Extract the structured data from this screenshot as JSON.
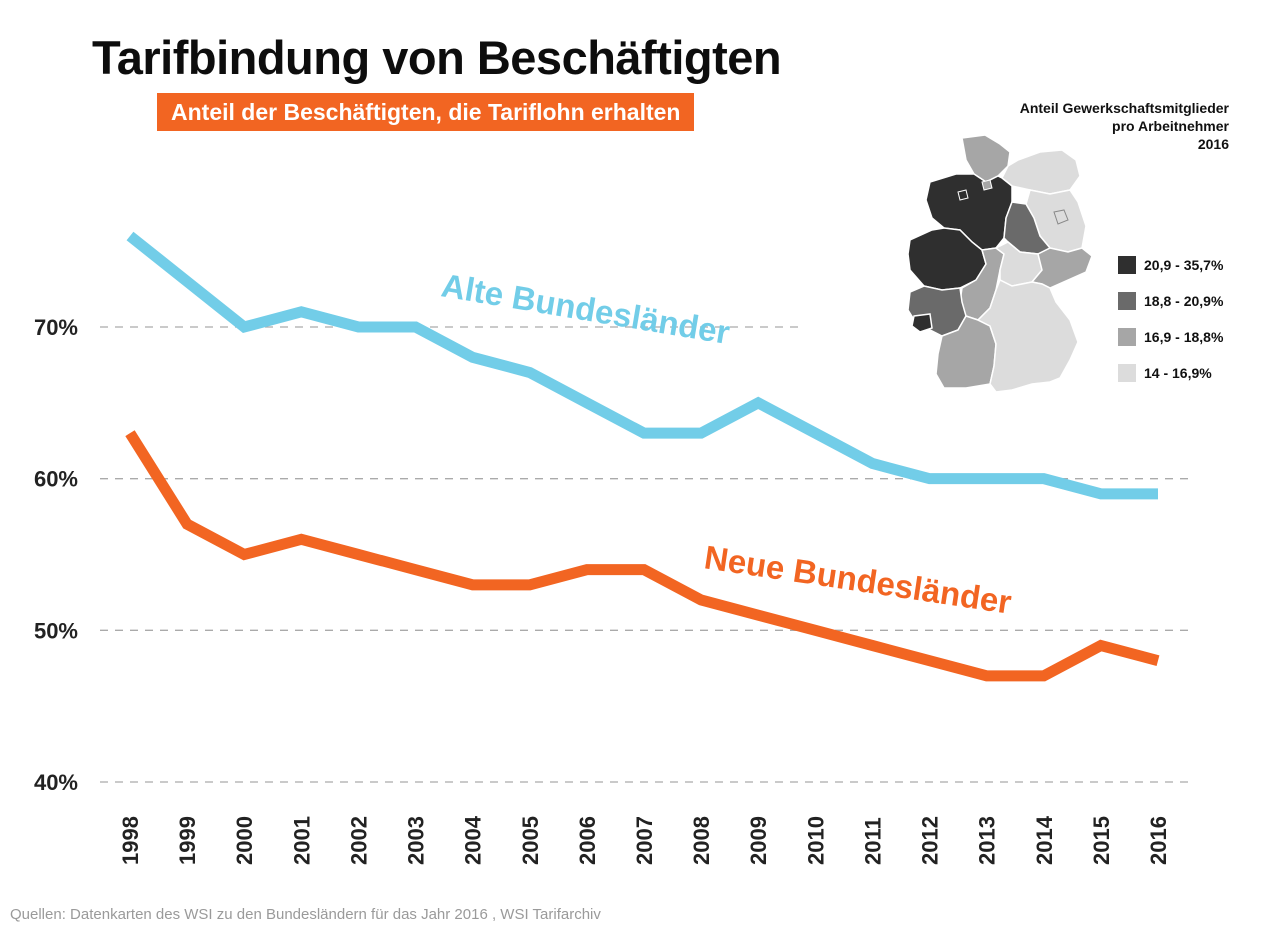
{
  "title": "Tarifbindung von Beschäftigten",
  "subtitle": "Anteil der Beschäftigten, die Tariflohn erhalten",
  "source": "Quellen: Datenkarten des WSI zu den Bundesländern für das Jahr 2016 , WSI Tarifarchiv",
  "colors": {
    "accent": "#f26522",
    "alte": "#72cde8",
    "neue": "#f26522",
    "grid": "#aaaaaa",
    "text": "#111111"
  },
  "map": {
    "title_lines": [
      "Anteil Gewerkschaftsmitglieder",
      "pro Arbeitnehmer",
      "2016"
    ],
    "legend": [
      {
        "label": "20,9 - 35,7%",
        "color": "#2f2f2f"
      },
      {
        "label": "18,8 - 20,9%",
        "color": "#6a6a6a"
      },
      {
        "label": "16,9 - 18,8%",
        "color": "#a6a6a6"
      },
      {
        "label": "14 - 16,9%",
        "color": "#dcdcdc"
      }
    ]
  },
  "chart_data": {
    "type": "line",
    "title": "Tarifbindung von Beschäftigten",
    "subtitle": "Anteil der Beschäftigten, die Tariflohn erhalten",
    "x": [
      "1998",
      "1999",
      "2000",
      "2001",
      "2002",
      "2003",
      "2004",
      "2005",
      "2006",
      "2007",
      "2008",
      "2009",
      "2010",
      "2011",
      "2012",
      "2013",
      "2014",
      "2015",
      "2016"
    ],
    "yticks": [
      40,
      50,
      60,
      70
    ],
    "ytick_labels": [
      "40%",
      "50%",
      "60%",
      "70%"
    ],
    "ylim": [
      40,
      77
    ],
    "grid": "horizontal dashed",
    "series": [
      {
        "name": "Alte Bundesländer",
        "color": "#72cde8",
        "values": [
          76,
          73,
          70,
          71,
          70,
          70,
          68,
          67,
          65,
          63,
          63,
          65,
          63,
          61,
          60,
          60,
          60,
          59,
          59
        ]
      },
      {
        "name": "Neue Bundesländer",
        "color": "#f26522",
        "values": [
          63,
          57,
          55,
          56,
          55,
          54,
          53,
          53,
          54,
          54,
          52,
          51,
          50,
          49,
          48,
          47,
          47,
          49,
          48
        ]
      }
    ]
  }
}
